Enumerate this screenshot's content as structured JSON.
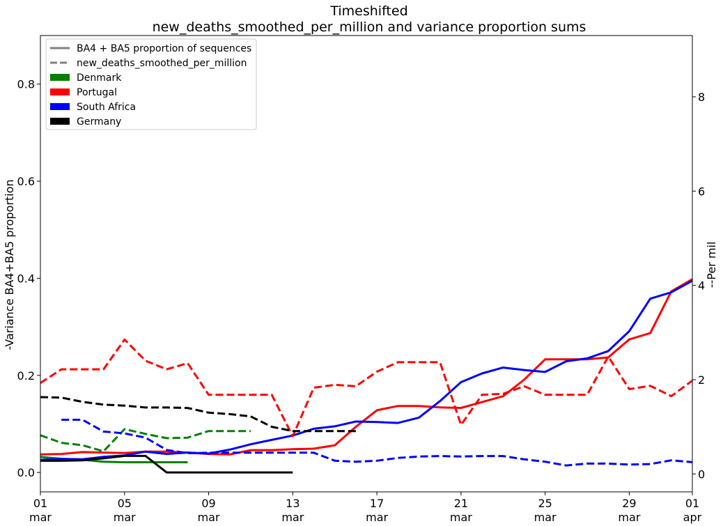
{
  "chart_data": {
    "type": "line",
    "title": [
      "Timeshifted",
      "new_deaths_smoothed_per_million and variance proportion sums"
    ],
    "ylabel_left": "-Variance BA4+BA5 proportion",
    "ylabel_right": "--Per mil",
    "x_ticks": [
      {
        "day": 0,
        "label": [
          "01",
          "mar"
        ]
      },
      {
        "day": 4,
        "label": [
          "05",
          "mar"
        ]
      },
      {
        "day": 8,
        "label": [
          "09",
          "mar"
        ]
      },
      {
        "day": 12,
        "label": [
          "13",
          "mar"
        ]
      },
      {
        "day": 16,
        "label": [
          "17",
          "mar"
        ]
      },
      {
        "day": 20,
        "label": [
          "21",
          "mar"
        ]
      },
      {
        "day": 24,
        "label": [
          "25",
          "mar"
        ]
      },
      {
        "day": 28,
        "label": [
          "29",
          "mar"
        ]
      },
      {
        "day": 31,
        "label": [
          "01",
          "apr"
        ]
      }
    ],
    "xlim": [
      0,
      31
    ],
    "ylim_left": [
      -0.04,
      0.9
    ],
    "y_ticks_left": [
      0.0,
      0.2,
      0.4,
      0.6,
      0.8
    ],
    "y_tick_labels_left": [
      "0.0",
      "0.2",
      "0.4",
      "0.6",
      "0.8"
    ],
    "ylim_right": [
      -0.38,
      9.3
    ],
    "y_ticks_right": [
      0,
      2,
      4,
      6,
      8
    ],
    "y_tick_labels_right": [
      "0",
      "2",
      "4",
      "6",
      "8"
    ],
    "grid": false,
    "legend": {
      "placement": "top-left",
      "entries": [
        {
          "label": "BA4 + BA5 proportion of sequences",
          "kind": "solid-line",
          "color": "#808080"
        },
        {
          "label": "new_deaths_smoothed_per_million",
          "kind": "dashed-line",
          "color": "#808080"
        },
        {
          "label": "Denmark",
          "kind": "patch",
          "color": "#008000"
        },
        {
          "label": "Portugal",
          "kind": "patch",
          "color": "#ff0000"
        },
        {
          "label": "South Africa",
          "kind": "patch",
          "color": "#0000ff"
        },
        {
          "label": "Germany",
          "kind": "patch",
          "color": "#000000"
        }
      ]
    },
    "series": [
      {
        "country": "Denmark",
        "metric": "variance_proportion",
        "axis": "left",
        "style": "solid",
        "color": "#008000",
        "x": [
          0,
          1,
          2,
          3,
          4,
          5,
          6,
          7
        ],
        "y": [
          0.032,
          0.028,
          0.026,
          0.022,
          0.021,
          0.021,
          0.021,
          0.021
        ]
      },
      {
        "country": "Portugal",
        "metric": "variance_proportion",
        "axis": "left",
        "style": "solid",
        "color": "#ff0000",
        "x": [
          0,
          1,
          2,
          3,
          4,
          5,
          6,
          7,
          8,
          9,
          10,
          11,
          12,
          13,
          14,
          15,
          16,
          17,
          18,
          19,
          20,
          21,
          22,
          23,
          24,
          25,
          26,
          27,
          28,
          29,
          30,
          31
        ],
        "y": [
          0.037,
          0.038,
          0.042,
          0.041,
          0.04,
          0.043,
          0.043,
          0.041,
          0.038,
          0.037,
          0.046,
          0.046,
          0.048,
          0.049,
          0.056,
          0.094,
          0.128,
          0.137,
          0.137,
          0.134,
          0.133,
          0.145,
          0.157,
          0.191,
          0.233,
          0.233,
          0.233,
          0.237,
          0.274,
          0.287,
          0.373,
          0.398
        ]
      },
      {
        "country": "South Africa",
        "metric": "variance_proportion",
        "axis": "left",
        "style": "solid",
        "color": "#0000ff",
        "x": [
          0,
          1,
          2,
          3,
          4,
          5,
          6,
          7,
          8,
          9,
          10,
          11,
          12,
          13,
          14,
          15,
          16,
          17,
          18,
          19,
          20,
          21,
          22,
          23,
          24,
          25,
          26,
          27,
          28,
          29,
          30,
          31
        ],
        "y": [
          0.026,
          0.028,
          0.027,
          0.032,
          0.035,
          0.043,
          0.038,
          0.041,
          0.039,
          0.047,
          0.058,
          0.067,
          0.076,
          0.09,
          0.095,
          0.105,
          0.104,
          0.102,
          0.113,
          0.147,
          0.186,
          0.204,
          0.216,
          0.211,
          0.207,
          0.229,
          0.235,
          0.25,
          0.291,
          0.358,
          0.371,
          0.395
        ]
      },
      {
        "country": "Germany",
        "metric": "variance_proportion",
        "axis": "left",
        "style": "solid",
        "color": "#000000",
        "x": [
          0,
          1,
          2,
          3,
          4,
          5,
          6,
          7,
          8,
          9,
          10,
          11,
          12
        ],
        "y": [
          0.024,
          0.024,
          0.025,
          0.029,
          0.034,
          0.034,
          0.0,
          0.0,
          0.0,
          0.0,
          0.0,
          0.0,
          0.0
        ]
      },
      {
        "country": "Denmark",
        "metric": "new_deaths_smoothed_per_million",
        "axis": "right",
        "style": "dashed",
        "color": "#008000",
        "x": [
          0,
          1,
          2,
          3,
          4,
          5,
          6,
          7,
          8,
          9,
          10
        ],
        "y": [
          0.82,
          0.66,
          0.61,
          0.48,
          0.95,
          0.85,
          0.76,
          0.77,
          0.91,
          0.91,
          0.91
        ]
      },
      {
        "country": "Portugal",
        "metric": "new_deaths_smoothed_per_million",
        "axis": "right",
        "style": "dashed",
        "color": "#ff0000",
        "x": [
          0,
          1,
          2,
          3,
          4,
          5,
          6,
          7,
          8,
          9,
          10,
          11,
          12,
          13,
          14,
          15,
          16,
          17,
          18,
          19,
          20,
          21,
          22,
          23,
          24,
          25,
          26,
          27,
          28,
          29,
          30,
          31
        ],
        "y": [
          1.93,
          2.22,
          2.22,
          2.22,
          2.85,
          2.4,
          2.22,
          2.35,
          1.68,
          1.68,
          1.68,
          1.68,
          0.8,
          1.83,
          1.89,
          1.86,
          2.17,
          2.37,
          2.37,
          2.37,
          1.04,
          1.68,
          1.7,
          1.86,
          1.68,
          1.68,
          1.68,
          2.49,
          1.8,
          1.87,
          1.65,
          1.98
        ]
      },
      {
        "country": "South Africa",
        "metric": "new_deaths_smoothed_per_million",
        "axis": "right",
        "style": "dashed",
        "color": "#0000ff",
        "x": [
          1,
          2,
          3,
          4,
          5,
          6,
          7,
          8,
          9,
          10,
          11,
          12,
          13,
          14,
          15,
          16,
          17,
          18,
          19,
          20,
          21,
          22,
          23,
          24,
          25,
          26,
          27,
          28,
          29,
          30,
          31
        ],
        "y": [
          1.15,
          1.15,
          0.9,
          0.86,
          0.77,
          0.51,
          0.44,
          0.45,
          0.45,
          0.45,
          0.45,
          0.45,
          0.45,
          0.28,
          0.26,
          0.28,
          0.34,
          0.37,
          0.38,
          0.37,
          0.38,
          0.38,
          0.31,
          0.26,
          0.18,
          0.22,
          0.22,
          0.2,
          0.21,
          0.29,
          0.25
        ]
      },
      {
        "country": "Germany",
        "metric": "new_deaths_smoothed_per_million",
        "axis": "right",
        "style": "dashed",
        "color": "#000000",
        "x": [
          0,
          1,
          2,
          3,
          4,
          5,
          6,
          7,
          8,
          9,
          10,
          11,
          12,
          13,
          14,
          15
        ],
        "y": [
          1.63,
          1.62,
          1.53,
          1.47,
          1.45,
          1.41,
          1.41,
          1.4,
          1.3,
          1.27,
          1.22,
          1.0,
          0.91,
          0.91,
          0.91,
          0.91
        ]
      }
    ]
  }
}
